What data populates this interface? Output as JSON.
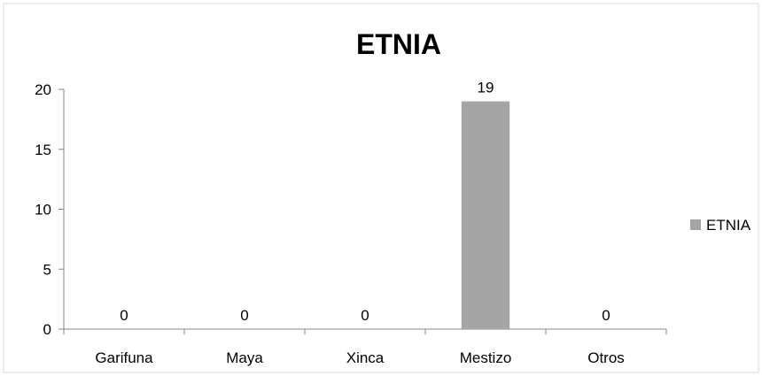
{
  "chart_data": {
    "type": "bar",
    "title": "ETNIA",
    "categories": [
      "Garifuna",
      "Maya",
      "Xinca",
      "Mestizo",
      "Otros"
    ],
    "series": [
      {
        "name": "ETNIA",
        "values": [
          0,
          0,
          0,
          19,
          0
        ],
        "color": "#a5a5a5"
      }
    ],
    "ylim": [
      0,
      20
    ],
    "yticks": [
      0,
      5,
      10,
      15,
      20
    ],
    "xlabel": "",
    "ylabel": "",
    "grid": false,
    "legend_position": "right",
    "data_labels": true
  }
}
